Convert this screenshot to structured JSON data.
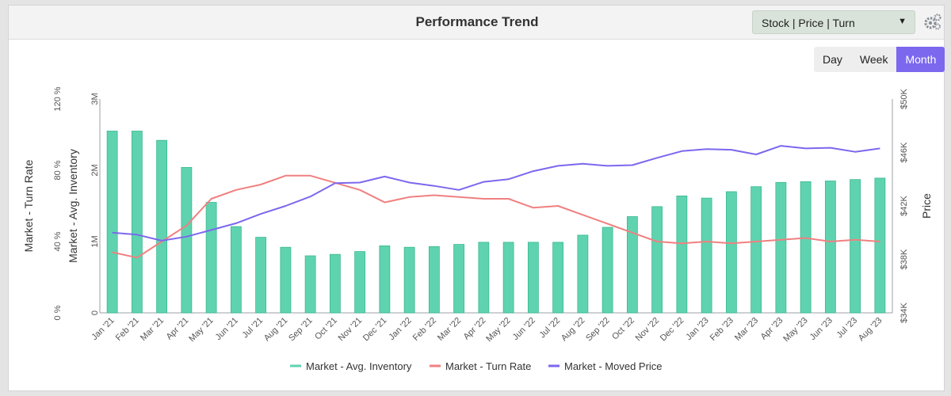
{
  "header": {
    "title": "Performance Trend"
  },
  "selector": {
    "label": "Stock | Price | Turn",
    "caret": "▼"
  },
  "period_buttons": [
    "Day",
    "Week",
    "Month"
  ],
  "active_period": "Month",
  "colors": {
    "bar": "#5fd3b0",
    "bar_edge": "#38b890",
    "turn": "#f08080",
    "price": "#7b68ee",
    "accent": "#7b68ee"
  },
  "chart_data": {
    "type": "bar",
    "categories": [
      "Jan '21",
      "Feb '21",
      "Mar '21",
      "Apr '21",
      "May '21",
      "Jun '21",
      "Jul '21",
      "Aug '21",
      "Sep '21",
      "Oct '21",
      "Nov '21",
      "Dec '21",
      "Jan '22",
      "Feb '22",
      "Mar '22",
      "Apr '22",
      "May '22",
      "Jun '22",
      "Jul '22",
      "Aug '22",
      "Sep '22",
      "Oct '22",
      "Nov '22",
      "Dec '22",
      "Jan '23",
      "Feb '23",
      "Mar '23",
      "Apr '23",
      "May '23",
      "Jun '23",
      "Jul '23",
      "Aug '23"
    ],
    "series": [
      {
        "name": "Market - Avg. Inventory",
        "type": "bar",
        "axis": "inventory",
        "values": [
          2550000,
          2550000,
          2420000,
          2040000,
          1550000,
          1210000,
          1060000,
          920000,
          800000,
          820000,
          860000,
          940000,
          920000,
          930000,
          960000,
          990000,
          990000,
          990000,
          990000,
          1090000,
          1200000,
          1350000,
          1490000,
          1640000,
          1610000,
          1700000,
          1770000,
          1830000,
          1840000,
          1850000,
          1870000,
          1890000
        ]
      },
      {
        "name": "Market - Turn Rate",
        "type": "line",
        "axis": "turn_rate",
        "values": [
          34,
          31,
          40,
          49,
          64,
          69,
          72,
          77,
          77,
          73,
          69,
          62,
          65,
          66,
          65,
          64,
          64,
          59,
          60,
          55,
          50,
          45,
          40,
          39,
          40,
          39,
          40,
          41,
          42,
          40,
          41,
          40
        ]
      },
      {
        "name": "Market - Moved Price",
        "type": "line",
        "axis": "price",
        "values": [
          40000,
          39850,
          39400,
          39700,
          40200,
          40700,
          41400,
          42000,
          42700,
          43700,
          43750,
          44200,
          43750,
          43500,
          43200,
          43800,
          44000,
          44600,
          45000,
          45150,
          45000,
          45050,
          45600,
          46100,
          46250,
          46200,
          45850,
          46500,
          46300,
          46350,
          46050,
          46300
        ]
      }
    ],
    "axes": {
      "turn_rate": {
        "label": "Market - Turn Rate",
        "ylim": [
          0,
          120
        ],
        "ticks": [
          "0 %",
          "40 %",
          "80 %",
          "120 %"
        ]
      },
      "inventory": {
        "label": "Market - Avg. Inventory",
        "ylim": [
          0,
          3000000
        ],
        "ticks": [
          "0",
          "1M",
          "2M",
          "3M"
        ]
      },
      "price": {
        "label": "Price",
        "ylim": [
          34000,
          50000
        ],
        "ticks": [
          "$34K",
          "$38K",
          "$42K",
          "$46K",
          "$50K"
        ]
      }
    },
    "grid": false,
    "legend_position": "bottom"
  }
}
